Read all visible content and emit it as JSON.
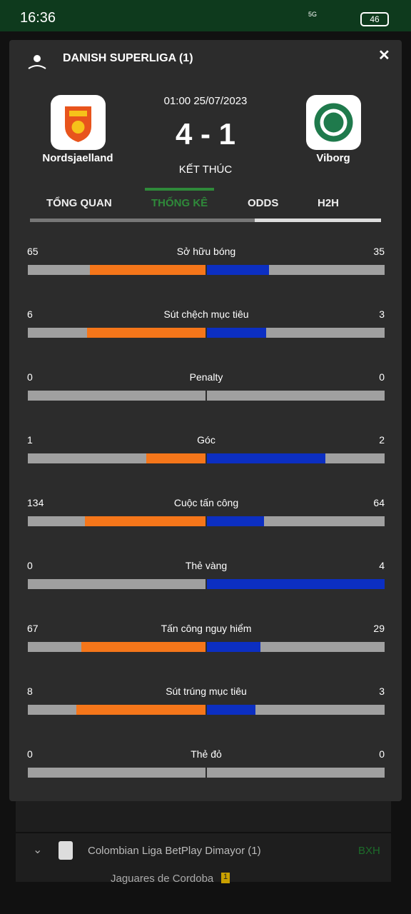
{
  "status_bar": {
    "time": "16:36",
    "network": "5G",
    "battery": "46"
  },
  "match": {
    "league": "DANISH SUPERLIGA (1)",
    "datetime": "01:00 25/07/2023",
    "score": "4 - 1",
    "state": "KẾT THÚC",
    "home": "Nordsjaelland",
    "away": "Viborg"
  },
  "tabs": [
    "TỔNG QUAN",
    "THỐNG KÊ",
    "ODDS",
    "H2H"
  ],
  "active_tab": 1,
  "stats": {
    "rows": [
      {
        "label": "Sở hữu bóng",
        "home": 65,
        "away": 35
      },
      {
        "label": "Sút chệch mục tiêu",
        "home": 6,
        "away": 3
      },
      {
        "label": "Penalty",
        "home": 0,
        "away": 0
      },
      {
        "label": "Góc",
        "home": 1,
        "away": 2
      },
      {
        "label": "Cuộc tấn công",
        "home": 134,
        "away": 64
      },
      {
        "label": "Thẻ vàng",
        "home": 0,
        "away": 4
      },
      {
        "label": "Tấn công nguy hiểm",
        "home": 67,
        "away": 29
      },
      {
        "label": "Sút trúng mục tiêu",
        "home": 8,
        "away": 3
      },
      {
        "label": "Thẻ đỏ",
        "home": 0,
        "away": 0
      }
    ]
  },
  "background_list": {
    "league": "Colombian Liga BetPlay Dimayor (1)",
    "standings": "BXH",
    "team": "Jaguares de Cordoba",
    "badge": "1"
  }
}
